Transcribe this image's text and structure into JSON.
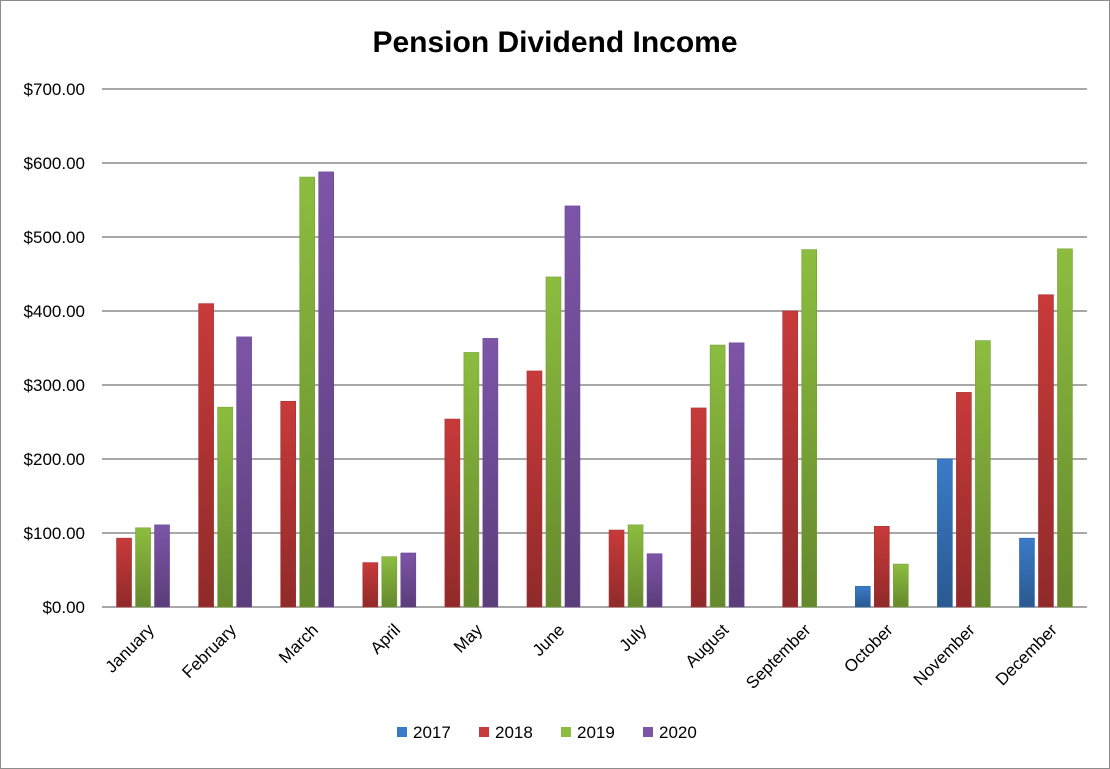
{
  "chart_data": {
    "type": "bar",
    "title": "Pension Dividend Income",
    "xlabel": "",
    "ylabel": "",
    "ylim": [
      0,
      700
    ],
    "yticks": [
      "$0.00",
      "$100.00",
      "$200.00",
      "$300.00",
      "$400.00",
      "$500.00",
      "$600.00",
      "$700.00"
    ],
    "grid": true,
    "legend_position": "bottom",
    "categories": [
      "January",
      "February",
      "March",
      "April",
      "May",
      "June",
      "July",
      "August",
      "September",
      "October",
      "November",
      "December"
    ],
    "series": [
      {
        "name": "2017",
        "color": "#3a7bc8",
        "values": [
          null,
          null,
          null,
          null,
          null,
          null,
          null,
          null,
          null,
          28,
          200,
          93
        ]
      },
      {
        "name": "2018",
        "color": "#c83a3a",
        "values": [
          93,
          410,
          278,
          60,
          254,
          319,
          104,
          269,
          400,
          109,
          290,
          422
        ]
      },
      {
        "name": "2019",
        "color": "#8cbd3f",
        "values": [
          107,
          270,
          581,
          68,
          344,
          446,
          111,
          354,
          483,
          58,
          360,
          484
        ]
      },
      {
        "name": "2020",
        "color": "#7d55a8",
        "values": [
          111,
          365,
          588,
          73,
          363,
          542,
          72,
          357,
          null,
          null,
          null,
          null
        ]
      }
    ]
  }
}
